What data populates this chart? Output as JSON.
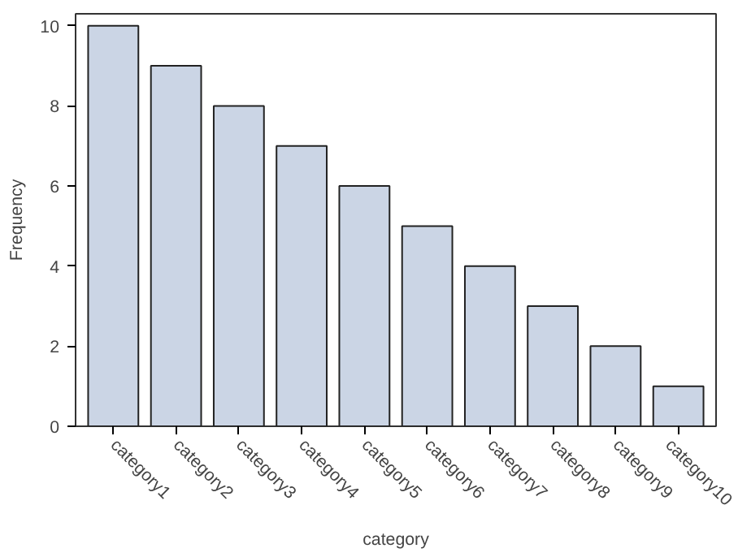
{
  "chart_data": {
    "type": "bar",
    "xlabel": "category",
    "ylabel": "Frequency",
    "categories": [
      "category1",
      "category2",
      "category3",
      "category4",
      "category5",
      "category6",
      "category7",
      "category8",
      "category9",
      "category10"
    ],
    "values": [
      10,
      9,
      8,
      7,
      6,
      5,
      4,
      3,
      2,
      1
    ],
    "color": "#cbd5e5",
    "ylim": [
      0,
      10.3
    ],
    "yticks": [
      0,
      2,
      4,
      6,
      8,
      10
    ]
  }
}
